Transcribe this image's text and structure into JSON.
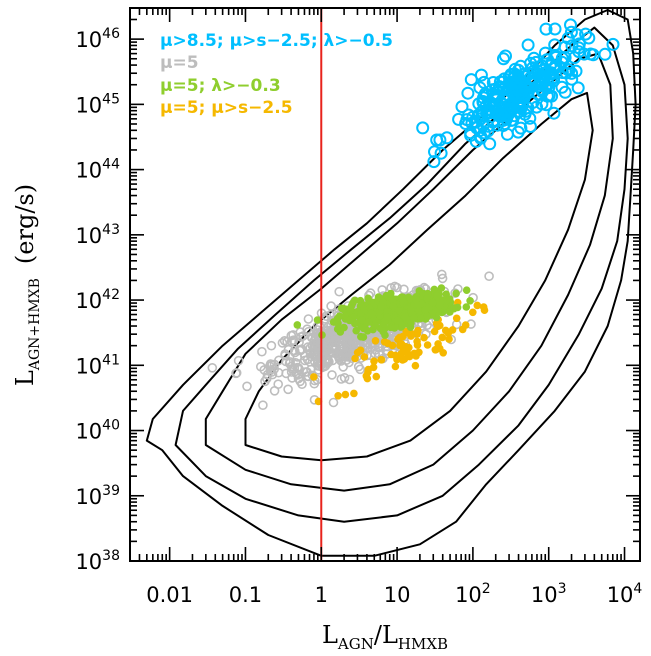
{
  "chart_data": {
    "type": "scatter",
    "title": "",
    "xlabel": {
      "base": "L",
      "sub1": "AGN",
      "slash": "/",
      "base2": "L",
      "sub2": "HMXB"
    },
    "ylabel": {
      "base": "L",
      "sub": "AGN+HMXB",
      "unit": "(erg/s)"
    },
    "x_scale": "log",
    "y_scale": "log",
    "xlim": [
      0.003,
      16000
    ],
    "ylim": [
      1e+38,
      3e+46
    ],
    "x_ticks": [
      {
        "value": 0.01,
        "label": "0.01"
      },
      {
        "value": 0.1,
        "label": "0.1"
      },
      {
        "value": 1,
        "label": "1"
      },
      {
        "value": 10,
        "label": "10"
      },
      {
        "value": 100,
        "label": "10",
        "sup": "2"
      },
      {
        "value": 1000,
        "label": "10",
        "sup": "3"
      },
      {
        "value": 10000,
        "label": "10",
        "sup": "4"
      }
    ],
    "y_ticks": [
      {
        "value": 1e+38,
        "label": "10",
        "sup": "38"
      },
      {
        "value": 1e+39,
        "label": "10",
        "sup": "39"
      },
      {
        "value": 1e+40,
        "label": "10",
        "sup": "40"
      },
      {
        "value": 1e+41,
        "label": "10",
        "sup": "41"
      },
      {
        "value": 1e+42,
        "label": "10",
        "sup": "42"
      },
      {
        "value": 1e+43,
        "label": "10",
        "sup": "43"
      },
      {
        "value": 1e+44,
        "label": "10",
        "sup": "44"
      },
      {
        "value": 1e+45,
        "label": "10",
        "sup": "45"
      },
      {
        "value": 1e+46,
        "label": "10",
        "sup": "46"
      }
    ],
    "vline": {
      "x": 1,
      "color": "#e8231c"
    },
    "legend": {
      "position": "top-left",
      "entries": [
        {
          "text": "μ>8.5;  μ>s−2.5;  λ>−0.5",
          "color": "#00bfff"
        },
        {
          "text": "μ=5",
          "color": "#bdbdbd"
        },
        {
          "text": "μ=5;  λ>−0.3",
          "color": "#8fce2e"
        },
        {
          "text": "μ=5;  μ>s−2.5",
          "color": "#f5b800"
        }
      ]
    },
    "series": [
      {
        "name": "μ>8.5;  μ>s−2.5;  λ>−0.5",
        "marker": "open-circle",
        "color": "#00bfff",
        "center": [
          400,
          1.5e+45
        ],
        "count": 260,
        "spread_logx": 0.42,
        "spread_logy": 0.38,
        "corr": 0.75
      },
      {
        "name": "μ=5",
        "marker": "open-circle",
        "color": "#bdbdbd",
        "center": [
          3,
          3e+41
        ],
        "count": 700,
        "spread_logx": 0.55,
        "spread_logy": 0.32,
        "corr": 0.7
      },
      {
        "name": "μ=5;  λ>−0.3",
        "marker": "filled-circle",
        "color": "#8fce2e",
        "center": [
          10,
          7e+41
        ],
        "count": 420,
        "spread_logx": 0.35,
        "spread_logy": 0.13,
        "corr": 0.5
      },
      {
        "name": "μ=5;  μ>s−2.5",
        "marker": "filled-circle",
        "color": "#f5b800",
        "center": [
          12,
          1.8e+41
        ],
        "count": 80,
        "spread_logx": 0.45,
        "spread_logy": 0.3,
        "corr": 0.8
      }
    ],
    "contours": [
      [
        [
          0.005,
          7e+39
        ],
        [
          0.008,
          5e+39
        ],
        [
          0.015,
          2e+39
        ],
        [
          0.05,
          7e+38
        ],
        [
          0.2,
          2.5e+38
        ],
        [
          1,
          1.2e+38
        ],
        [
          5,
          1.2e+38
        ],
        [
          20,
          1.8e+38
        ],
        [
          60,
          4e+38
        ],
        [
          150,
          1.5e+39
        ],
        [
          400,
          5e+39
        ],
        [
          1200,
          2e+40
        ],
        [
          3000,
          8e+40
        ],
        [
          6000,
          4e+41
        ],
        [
          9000,
          2e+42
        ],
        [
          11000,
          8e+42
        ],
        [
          12000,
          4e+43
        ],
        [
          13000,
          2e+44
        ],
        [
          14000,
          1e+45
        ],
        [
          13000,
          6e+45
        ],
        [
          11000,
          2e+46
        ],
        [
          6000,
          2.8e+46
        ],
        [
          3000,
          2e+46
        ],
        [
          1200,
          8e+45
        ],
        [
          400,
          2e+45
        ],
        [
          120,
          6e+44
        ],
        [
          40,
          2e+44
        ],
        [
          12,
          5e+43
        ],
        [
          4,
          1.5e+43
        ],
        [
          1.5,
          6e+42
        ],
        [
          0.5,
          2e+42
        ],
        [
          0.15,
          6e+41
        ],
        [
          0.05,
          2e+41
        ],
        [
          0.015,
          5e+40
        ],
        [
          0.006,
          1.5e+40
        ],
        [
          0.005,
          7e+39
        ]
      ],
      [
        [
          0.012,
          6e+39
        ],
        [
          0.03,
          2e+39
        ],
        [
          0.1,
          9e+38
        ],
        [
          0.5,
          5e+38
        ],
        [
          2,
          4e+38
        ],
        [
          10,
          5e+38
        ],
        [
          40,
          1e+39
        ],
        [
          120,
          3e+39
        ],
        [
          400,
          1.2e+40
        ],
        [
          1000,
          5e+40
        ],
        [
          2500,
          3e+41
        ],
        [
          5000,
          1.5e+42
        ],
        [
          8000,
          8e+42
        ],
        [
          10000,
          5e+43
        ],
        [
          11000,
          3e+44
        ],
        [
          10000,
          2e+45
        ],
        [
          7000,
          8e+45
        ],
        [
          4000,
          1.5e+46
        ],
        [
          2000,
          8e+45
        ],
        [
          800,
          3e+45
        ],
        [
          250,
          8e+44
        ],
        [
          80,
          2.5e+44
        ],
        [
          25,
          6e+43
        ],
        [
          8,
          1.8e+43
        ],
        [
          2.5,
          6e+42
        ],
        [
          0.8,
          2e+42
        ],
        [
          0.25,
          6e+41
        ],
        [
          0.08,
          1.8e+41
        ],
        [
          0.03,
          5e+40
        ],
        [
          0.015,
          2e+40
        ],
        [
          0.012,
          6e+39
        ]
      ],
      [
        [
          0.03,
          6e+39
        ],
        [
          0.1,
          2.5e+39
        ],
        [
          0.4,
          1.5e+39
        ],
        [
          2,
          1.2e+39
        ],
        [
          8,
          1.5e+39
        ],
        [
          30,
          3e+39
        ],
        [
          100,
          1e+40
        ],
        [
          300,
          4e+40
        ],
        [
          800,
          2e+41
        ],
        [
          1800,
          1.2e+42
        ],
        [
          3500,
          7e+42
        ],
        [
          5500,
          4e+43
        ],
        [
          7000,
          3e+44
        ],
        [
          6500,
          2e+45
        ],
        [
          4500,
          6e+45
        ],
        [
          2500,
          5e+45
        ],
        [
          1000,
          2e+45
        ],
        [
          300,
          6e+44
        ],
        [
          100,
          2e+44
        ],
        [
          30,
          5e+43
        ],
        [
          10,
          1.5e+43
        ],
        [
          3,
          4.5e+42
        ],
        [
          1,
          1.5e+42
        ],
        [
          0.3,
          5e+41
        ],
        [
          0.1,
          1.5e+41
        ],
        [
          0.05,
          4e+40
        ],
        [
          0.03,
          1.5e+40
        ],
        [
          0.03,
          6e+39
        ]
      ],
      [
        [
          0.1,
          6e+39
        ],
        [
          0.3,
          4e+39
        ],
        [
          1,
          3.5e+39
        ],
        [
          4,
          4e+39
        ],
        [
          15,
          7e+39
        ],
        [
          50,
          2e+40
        ],
        [
          150,
          8e+40
        ],
        [
          400,
          4e+41
        ],
        [
          900,
          2e+42
        ],
        [
          1800,
          1.2e+43
        ],
        [
          3000,
          7e+43
        ],
        [
          3800,
          4e+44
        ],
        [
          3200,
          1.5e+45
        ],
        [
          2000,
          1.2e+45
        ],
        [
          800,
          5e+44
        ],
        [
          250,
          1.5e+44
        ],
        [
          80,
          4e+43
        ],
        [
          25,
          1.2e+43
        ],
        [
          8,
          3.5e+42
        ],
        [
          2.5,
          1.2e+42
        ],
        [
          0.8,
          4e+41
        ],
        [
          0.3,
          1.2e+41
        ],
        [
          0.15,
          4e+40
        ],
        [
          0.1,
          1.5e+40
        ],
        [
          0.1,
          6e+39
        ]
      ]
    ]
  }
}
